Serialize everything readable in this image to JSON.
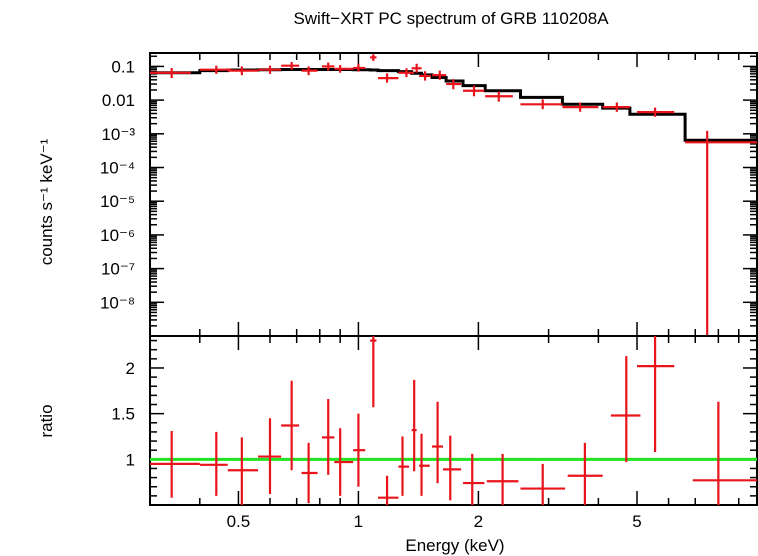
{
  "chart_data": [
    {
      "type": "scatter",
      "panel": "spectrum",
      "title": "Swift−XRT PC spectrum of GRB 110208A",
      "xlabel": "",
      "ylabel": "counts s⁻¹ keV⁻¹",
      "x_scale": "log",
      "y_scale": "log",
      "xlim": [
        0.3,
        10
      ],
      "ylim": [
        1e-09,
        0.25
      ],
      "y_ticks": [
        {
          "value": 0.1,
          "label": "0.1"
        },
        {
          "value": 0.01,
          "label": "0.01"
        },
        {
          "value": 0.001,
          "label": "10⁻³"
        },
        {
          "value": 0.0001,
          "label": "10⁻⁴"
        },
        {
          "value": 1e-05,
          "label": "10⁻⁵"
        },
        {
          "value": 1e-06,
          "label": "10⁻⁶"
        },
        {
          "value": 1e-07,
          "label": "10⁻⁷"
        },
        {
          "value": 1e-08,
          "label": "10⁻⁸"
        }
      ],
      "series": [
        {
          "name": "",
          "style": "errorbars",
          "color": "#e8141b",
          "points": [
            {
              "x": 0.34,
              "xlo": 0.3,
              "xhi": 0.38,
              "y": 0.065,
              "ylo": 0.045,
              "yhi": 0.09
            },
            {
              "x": 0.44,
              "xlo": 0.4,
              "xhi": 0.48,
              "y": 0.08,
              "ylo": 0.06,
              "yhi": 0.105
            },
            {
              "x": 0.51,
              "xlo": 0.47,
              "xhi": 0.56,
              "y": 0.075,
              "ylo": 0.055,
              "yhi": 0.1
            },
            {
              "x": 0.6,
              "xlo": 0.56,
              "xhi": 0.64,
              "y": 0.08,
              "ylo": 0.06,
              "yhi": 0.105
            },
            {
              "x": 0.68,
              "xlo": 0.64,
              "xhi": 0.71,
              "y": 0.105,
              "ylo": 0.08,
              "yhi": 0.135
            },
            {
              "x": 0.75,
              "xlo": 0.72,
              "xhi": 0.79,
              "y": 0.075,
              "ylo": 0.055,
              "yhi": 0.1
            },
            {
              "x": 0.84,
              "xlo": 0.81,
              "xhi": 0.87,
              "y": 0.1,
              "ylo": 0.075,
              "yhi": 0.13
            },
            {
              "x": 0.9,
              "xlo": 0.87,
              "xhi": 0.97,
              "y": 0.085,
              "ylo": 0.065,
              "yhi": 0.11
            },
            {
              "x": 1.0,
              "xlo": 0.97,
              "xhi": 1.04,
              "y": 0.09,
              "ylo": 0.07,
              "yhi": 0.12
            },
            {
              "x": 1.09,
              "xlo": 1.07,
              "xhi": 1.11,
              "y": 0.185,
              "ylo": 0.145,
              "yhi": 0.23
            },
            {
              "x": 1.18,
              "xlo": 1.12,
              "xhi": 1.26,
              "y": 0.045,
              "ylo": 0.033,
              "yhi": 0.062
            },
            {
              "x": 1.32,
              "xlo": 1.26,
              "xhi": 1.38,
              "y": 0.065,
              "ylo": 0.048,
              "yhi": 0.088
            },
            {
              "x": 1.4,
              "xlo": 1.36,
              "xhi": 1.44,
              "y": 0.088,
              "ylo": 0.065,
              "yhi": 0.12
            },
            {
              "x": 1.47,
              "xlo": 1.42,
              "xhi": 1.52,
              "y": 0.052,
              "ylo": 0.038,
              "yhi": 0.072
            },
            {
              "x": 1.6,
              "xlo": 1.53,
              "xhi": 1.66,
              "y": 0.055,
              "ylo": 0.04,
              "yhi": 0.075
            },
            {
              "x": 1.73,
              "xlo": 1.66,
              "xhi": 1.81,
              "y": 0.03,
              "ylo": 0.021,
              "yhi": 0.042
            },
            {
              "x": 1.95,
              "xlo": 1.83,
              "xhi": 2.07,
              "y": 0.019,
              "ylo": 0.013,
              "yhi": 0.027
            },
            {
              "x": 2.25,
              "xlo": 2.08,
              "xhi": 2.44,
              "y": 0.013,
              "ylo": 0.009,
              "yhi": 0.018
            },
            {
              "x": 2.9,
              "xlo": 2.55,
              "xhi": 3.25,
              "y": 0.0075,
              "ylo": 0.0054,
              "yhi": 0.0105
            },
            {
              "x": 3.6,
              "xlo": 3.25,
              "xhi": 4.0,
              "y": 0.0062,
              "ylo": 0.0045,
              "yhi": 0.0085
            },
            {
              "x": 4.45,
              "xlo": 4.1,
              "xhi": 4.8,
              "y": 0.0062,
              "ylo": 0.0045,
              "yhi": 0.0085
            },
            {
              "x": 5.55,
              "xlo": 5.0,
              "xhi": 6.2,
              "y": 0.0044,
              "ylo": 0.0032,
              "yhi": 0.006
            },
            {
              "x": 7.5,
              "xlo": 6.6,
              "xhi": 10.0,
              "y": 0.00056,
              "ylo": 1e-09,
              "yhi": 0.00122
            }
          ]
        },
        {
          "name": "",
          "style": "step",
          "color": "#000000",
          "edges": [
            0.3,
            0.4,
            0.47,
            0.56,
            0.64,
            0.72,
            0.81,
            0.87,
            0.97,
            1.07,
            1.12,
            1.26,
            1.36,
            1.44,
            1.53,
            1.66,
            1.83,
            2.08,
            2.55,
            3.25,
            4.1,
            4.8,
            6.6,
            10.0
          ],
          "values": [
            0.065,
            0.075,
            0.078,
            0.08,
            0.081,
            0.081,
            0.081,
            0.081,
            0.08,
            0.078,
            0.075,
            0.07,
            0.063,
            0.056,
            0.047,
            0.037,
            0.027,
            0.019,
            0.012,
            0.0075,
            0.0058,
            0.0038,
            0.00064
          ]
        }
      ]
    },
    {
      "type": "scatter",
      "panel": "ratio",
      "xlabel": "Energy (keV)",
      "ylabel": "ratio",
      "x_scale": "log",
      "y_scale": "linear",
      "xlim": [
        0.3,
        10
      ],
      "ylim": [
        0.5,
        2.35
      ],
      "x_ticks": [
        {
          "value": 0.5,
          "label": "0.5"
        },
        {
          "value": 1,
          "label": "1"
        },
        {
          "value": 2,
          "label": "2"
        },
        {
          "value": 5,
          "label": "5"
        }
      ],
      "y_ticks": [
        {
          "value": 1,
          "label": "1"
        },
        {
          "value": 1.5,
          "label": "1.5"
        },
        {
          "value": 2,
          "label": "2"
        }
      ],
      "reference_line": {
        "y": 1,
        "color": "#21e321"
      },
      "series": [
        {
          "name": "",
          "style": "errorbars",
          "color": "#e8141b",
          "points": [
            {
              "x": 0.34,
              "xlo": 0.3,
              "xhi": 0.4,
              "y": 0.95,
              "ylo": 0.58,
              "yhi": 1.31
            },
            {
              "x": 0.44,
              "xlo": 0.4,
              "xhi": 0.47,
              "y": 0.94,
              "ylo": 0.6,
              "yhi": 1.3
            },
            {
              "x": 0.51,
              "xlo": 0.47,
              "xhi": 0.56,
              "y": 0.88,
              "ylo": 0.5,
              "yhi": 1.24
            },
            {
              "x": 0.6,
              "xlo": 0.56,
              "xhi": 0.64,
              "y": 1.03,
              "ylo": 0.62,
              "yhi": 1.45
            },
            {
              "x": 0.68,
              "xlo": 0.64,
              "xhi": 0.71,
              "y": 1.37,
              "ylo": 0.88,
              "yhi": 1.86
            },
            {
              "x": 0.75,
              "xlo": 0.72,
              "xhi": 0.79,
              "y": 0.85,
              "ylo": 0.52,
              "yhi": 1.18
            },
            {
              "x": 0.84,
              "xlo": 0.81,
              "xhi": 0.87,
              "y": 1.24,
              "ylo": 0.83,
              "yhi": 1.66
            },
            {
              "x": 0.9,
              "xlo": 0.87,
              "xhi": 0.97,
              "y": 0.97,
              "ylo": 0.6,
              "yhi": 1.34
            },
            {
              "x": 1.0,
              "xlo": 0.97,
              "xhi": 1.04,
              "y": 1.1,
              "ylo": 0.7,
              "yhi": 1.5
            },
            {
              "x": 1.09,
              "xlo": 1.07,
              "xhi": 1.11,
              "y": 2.3,
              "ylo": 1.57,
              "yhi": 2.35
            },
            {
              "x": 1.18,
              "xlo": 1.12,
              "xhi": 1.26,
              "y": 0.58,
              "ylo": 0.5,
              "yhi": 0.82
            },
            {
              "x": 1.29,
              "xlo": 1.26,
              "xhi": 1.34,
              "y": 0.92,
              "ylo": 0.6,
              "yhi": 1.25
            },
            {
              "x": 1.38,
              "xlo": 1.36,
              "xhi": 1.4,
              "y": 1.32,
              "ylo": 0.87,
              "yhi": 1.87
            },
            {
              "x": 1.44,
              "xlo": 1.42,
              "xhi": 1.51,
              "y": 0.93,
              "ylo": 0.6,
              "yhi": 1.28
            },
            {
              "x": 1.58,
              "xlo": 1.53,
              "xhi": 1.63,
              "y": 1.14,
              "ylo": 0.74,
              "yhi": 1.63
            },
            {
              "x": 1.7,
              "xlo": 1.63,
              "xhi": 1.81,
              "y": 0.89,
              "ylo": 0.55,
              "yhi": 1.26
            },
            {
              "x": 1.93,
              "xlo": 1.83,
              "xhi": 2.07,
              "y": 0.74,
              "ylo": 0.5,
              "yhi": 1.06
            },
            {
              "x": 2.3,
              "xlo": 2.1,
              "xhi": 2.52,
              "y": 0.76,
              "ylo": 0.5,
              "yhi": 1.06
            },
            {
              "x": 2.9,
              "xlo": 2.55,
              "xhi": 3.3,
              "y": 0.68,
              "ylo": 0.5,
              "yhi": 0.95
            },
            {
              "x": 3.7,
              "xlo": 3.35,
              "xhi": 4.1,
              "y": 0.82,
              "ylo": 0.5,
              "yhi": 1.18
            },
            {
              "x": 4.7,
              "xlo": 4.3,
              "xhi": 5.1,
              "y": 1.48,
              "ylo": 0.97,
              "yhi": 2.13
            },
            {
              "x": 5.55,
              "xlo": 5.0,
              "xhi": 6.2,
              "y": 2.02,
              "ylo": 1.08,
              "yhi": 2.35
            },
            {
              "x": 8.0,
              "xlo": 6.9,
              "xhi": 10.0,
              "y": 0.77,
              "ylo": 0.5,
              "yhi": 1.63
            }
          ]
        }
      ]
    }
  ]
}
